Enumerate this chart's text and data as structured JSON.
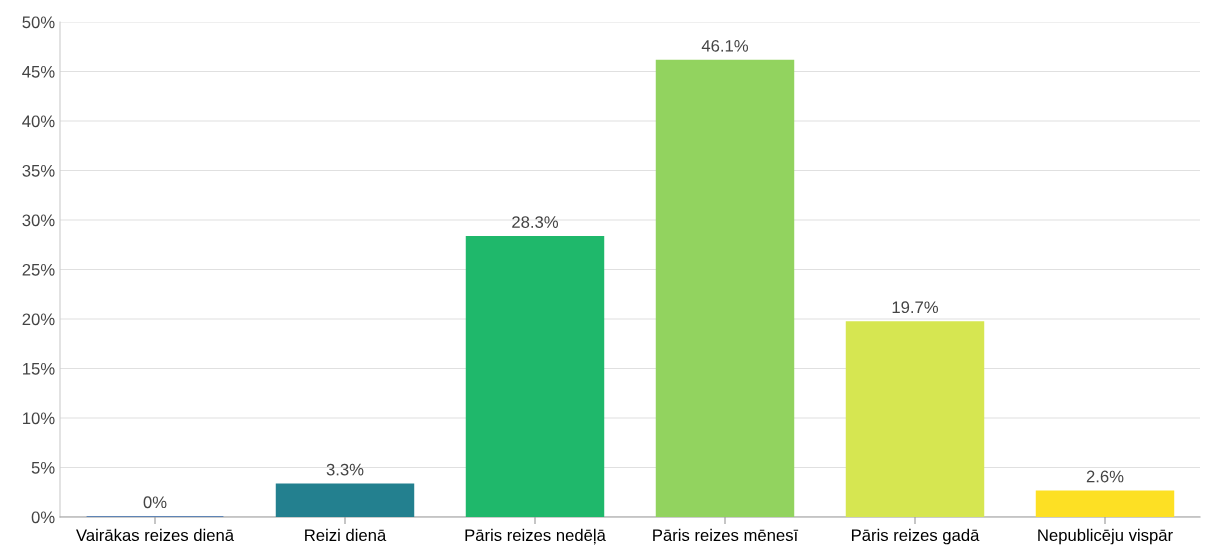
{
  "chart_data": {
    "type": "bar",
    "categories": [
      "Vairākas reizes dienā",
      "Reizi dienā",
      "Pāris reizes nedēļā",
      "Pāris reizes mēnesī",
      "Pāris reizes gadā",
      "Nepublicēju vispār"
    ],
    "values": [
      0,
      3.3,
      28.3,
      46.1,
      19.7,
      2.6
    ],
    "colors": [
      "#3c6fb0",
      "#23808f",
      "#1fb86b",
      "#92d35f",
      "#d6e651",
      "#fde024"
    ],
    "value_labels": [
      "0%",
      "3.3%",
      "28.3%",
      "46.1%",
      "19.7%",
      "2.6%"
    ],
    "ylim": [
      0,
      50
    ],
    "yticks": [
      {
        "value": 0,
        "label": "0%"
      },
      {
        "value": 5,
        "label": "5%"
      },
      {
        "value": 10,
        "label": "10%"
      },
      {
        "value": 15,
        "label": "15%"
      },
      {
        "value": 20,
        "label": "20%"
      },
      {
        "value": 25,
        "label": "25%"
      },
      {
        "value": 30,
        "label": "30%"
      },
      {
        "value": 35,
        "label": "35%"
      },
      {
        "value": 40,
        "label": "40%"
      },
      {
        "value": 45,
        "label": "45%"
      },
      {
        "value": 50,
        "label": "50%"
      }
    ],
    "grid": "y"
  }
}
